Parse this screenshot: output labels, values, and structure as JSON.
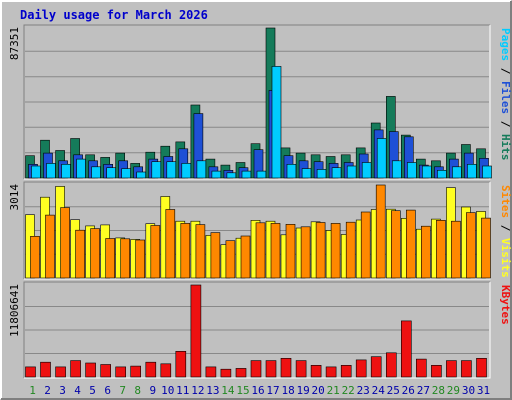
{
  "chart_data": {
    "type": "bar",
    "title": "Daily usage for March 2026",
    "days": [
      "1",
      "2",
      "3",
      "4",
      "5",
      "6",
      "7",
      "8",
      "9",
      "10",
      "11",
      "12",
      "13",
      "14",
      "15",
      "16",
      "17",
      "18",
      "19",
      "20",
      "21",
      "22",
      "23",
      "24",
      "25",
      "26",
      "27",
      "28",
      "29",
      "30",
      "31"
    ],
    "weekend_days": [
      "1",
      "7",
      "8",
      "14",
      "15",
      "21",
      "22",
      "28",
      "29"
    ],
    "colors": {
      "background": "#c0c0c0",
      "frame": "#c0c0c0",
      "title": "#0000cc",
      "hits": "#157b5a",
      "files": "#1e50d6",
      "pages": "#00ccff",
      "visits": "#ffff22",
      "sites": "#ff8800",
      "kbytes": "#ee1111",
      "weekday_label": "#0000aa",
      "weekend_label": "#228822"
    },
    "panels": [
      {
        "id": "top",
        "max_label": "87351",
        "max": 87351,
        "side_label": [
          {
            "text": "Pages",
            "color": "#00ccff"
          },
          {
            "text": " / ",
            "color": "#000000"
          },
          {
            "text": "Files",
            "color": "#1e50d6"
          },
          {
            "text": " / ",
            "color": "#000000"
          },
          {
            "text": "Hits",
            "color": "#157b5a"
          }
        ],
        "series": [
          {
            "name": "Hits",
            "color": "#157b5a",
            "values": [
              13000,
              22000,
              16000,
              23000,
              13500,
              12000,
              14500,
              8500,
              15000,
              18500,
              21000,
              42500,
              11000,
              7500,
              9000,
              20000,
              87351,
              17500,
              14500,
              13500,
              12500,
              13500,
              17500,
              32000,
              47500,
              25000,
              11000,
              10000,
              14500,
              19500,
              17000
            ]
          },
          {
            "name": "Files",
            "color": "#1e50d6",
            "values": [
              8000,
              14500,
              10000,
              13500,
              10000,
              8000,
              10000,
              6500,
              11000,
              12500,
              17000,
              37500,
              6500,
              4500,
              6000,
              16500,
              51000,
              13000,
              10000,
              9500,
              8500,
              9000,
              14000,
              28000,
              27000,
              24000,
              7500,
              6500,
              11000,
              14500,
              11500
            ]
          },
          {
            "name": "Pages",
            "color": "#00ccff",
            "values": [
              7000,
              8500,
              8000,
              11000,
              6500,
              6000,
              5500,
              3500,
              9500,
              9500,
              8500,
              10000,
              4000,
              3000,
              4000,
              4000,
              65000,
              8000,
              5500,
              5000,
              6000,
              7000,
              9000,
              23000,
              10000,
              9000,
              7000,
              4500,
              6500,
              8000,
              7000
            ]
          }
        ]
      },
      {
        "id": "middle",
        "max_label": "3014",
        "max": 3014,
        "side_label": [
          {
            "text": "Sites",
            "color": "#ff8800"
          },
          {
            "text": " / ",
            "color": "#000000"
          },
          {
            "text": "Visits",
            "color": "#ffff22"
          }
        ],
        "series": [
          {
            "name": "Visits",
            "color": "#ffff22",
            "values": [
              2050,
              2620,
              2970,
              1890,
              1690,
              1720,
              1300,
              1250,
              1760,
              2640,
              1840,
              1840,
              1380,
              1080,
              1290,
              1870,
              1840,
              1400,
              1620,
              1820,
              1540,
              1410,
              1880,
              2220,
              2230,
              1930,
              1580,
              1910,
              2930,
              2300,
              2160
            ]
          },
          {
            "name": "Sites",
            "color": "#ff8800",
            "values": [
              1350,
              2040,
              2280,
              1550,
              1600,
              1280,
              1270,
              1230,
              1700,
              2220,
              1770,
              1730,
              1470,
              1210,
              1360,
              1790,
              1770,
              1740,
              1660,
              1800,
              1770,
              1810,
              2140,
              3014,
              2180,
              2200,
              1680,
              1870,
              1840,
              2120,
              1940
            ]
          }
        ]
      },
      {
        "id": "bottom",
        "max_label": "11806641",
        "max": 11806641,
        "side_label": [
          {
            "text": "KBytes",
            "color": "#ee1111"
          }
        ],
        "series": [
          {
            "name": "KBytes",
            "color": "#ee1111",
            "values": [
              1300000,
              1900000,
              1300000,
              2100000,
              1800000,
              1600000,
              1300000,
              1400000,
              1900000,
              1700000,
              3300000,
              11806641,
              1300000,
              1000000,
              1100000,
              2100000,
              2100000,
              2400000,
              2100000,
              1500000,
              1300000,
              1500000,
              2200000,
              2600000,
              3100000,
              7200000,
              2300000,
              1500000,
              2100000,
              2100000,
              2400000
            ]
          }
        ]
      }
    ]
  }
}
